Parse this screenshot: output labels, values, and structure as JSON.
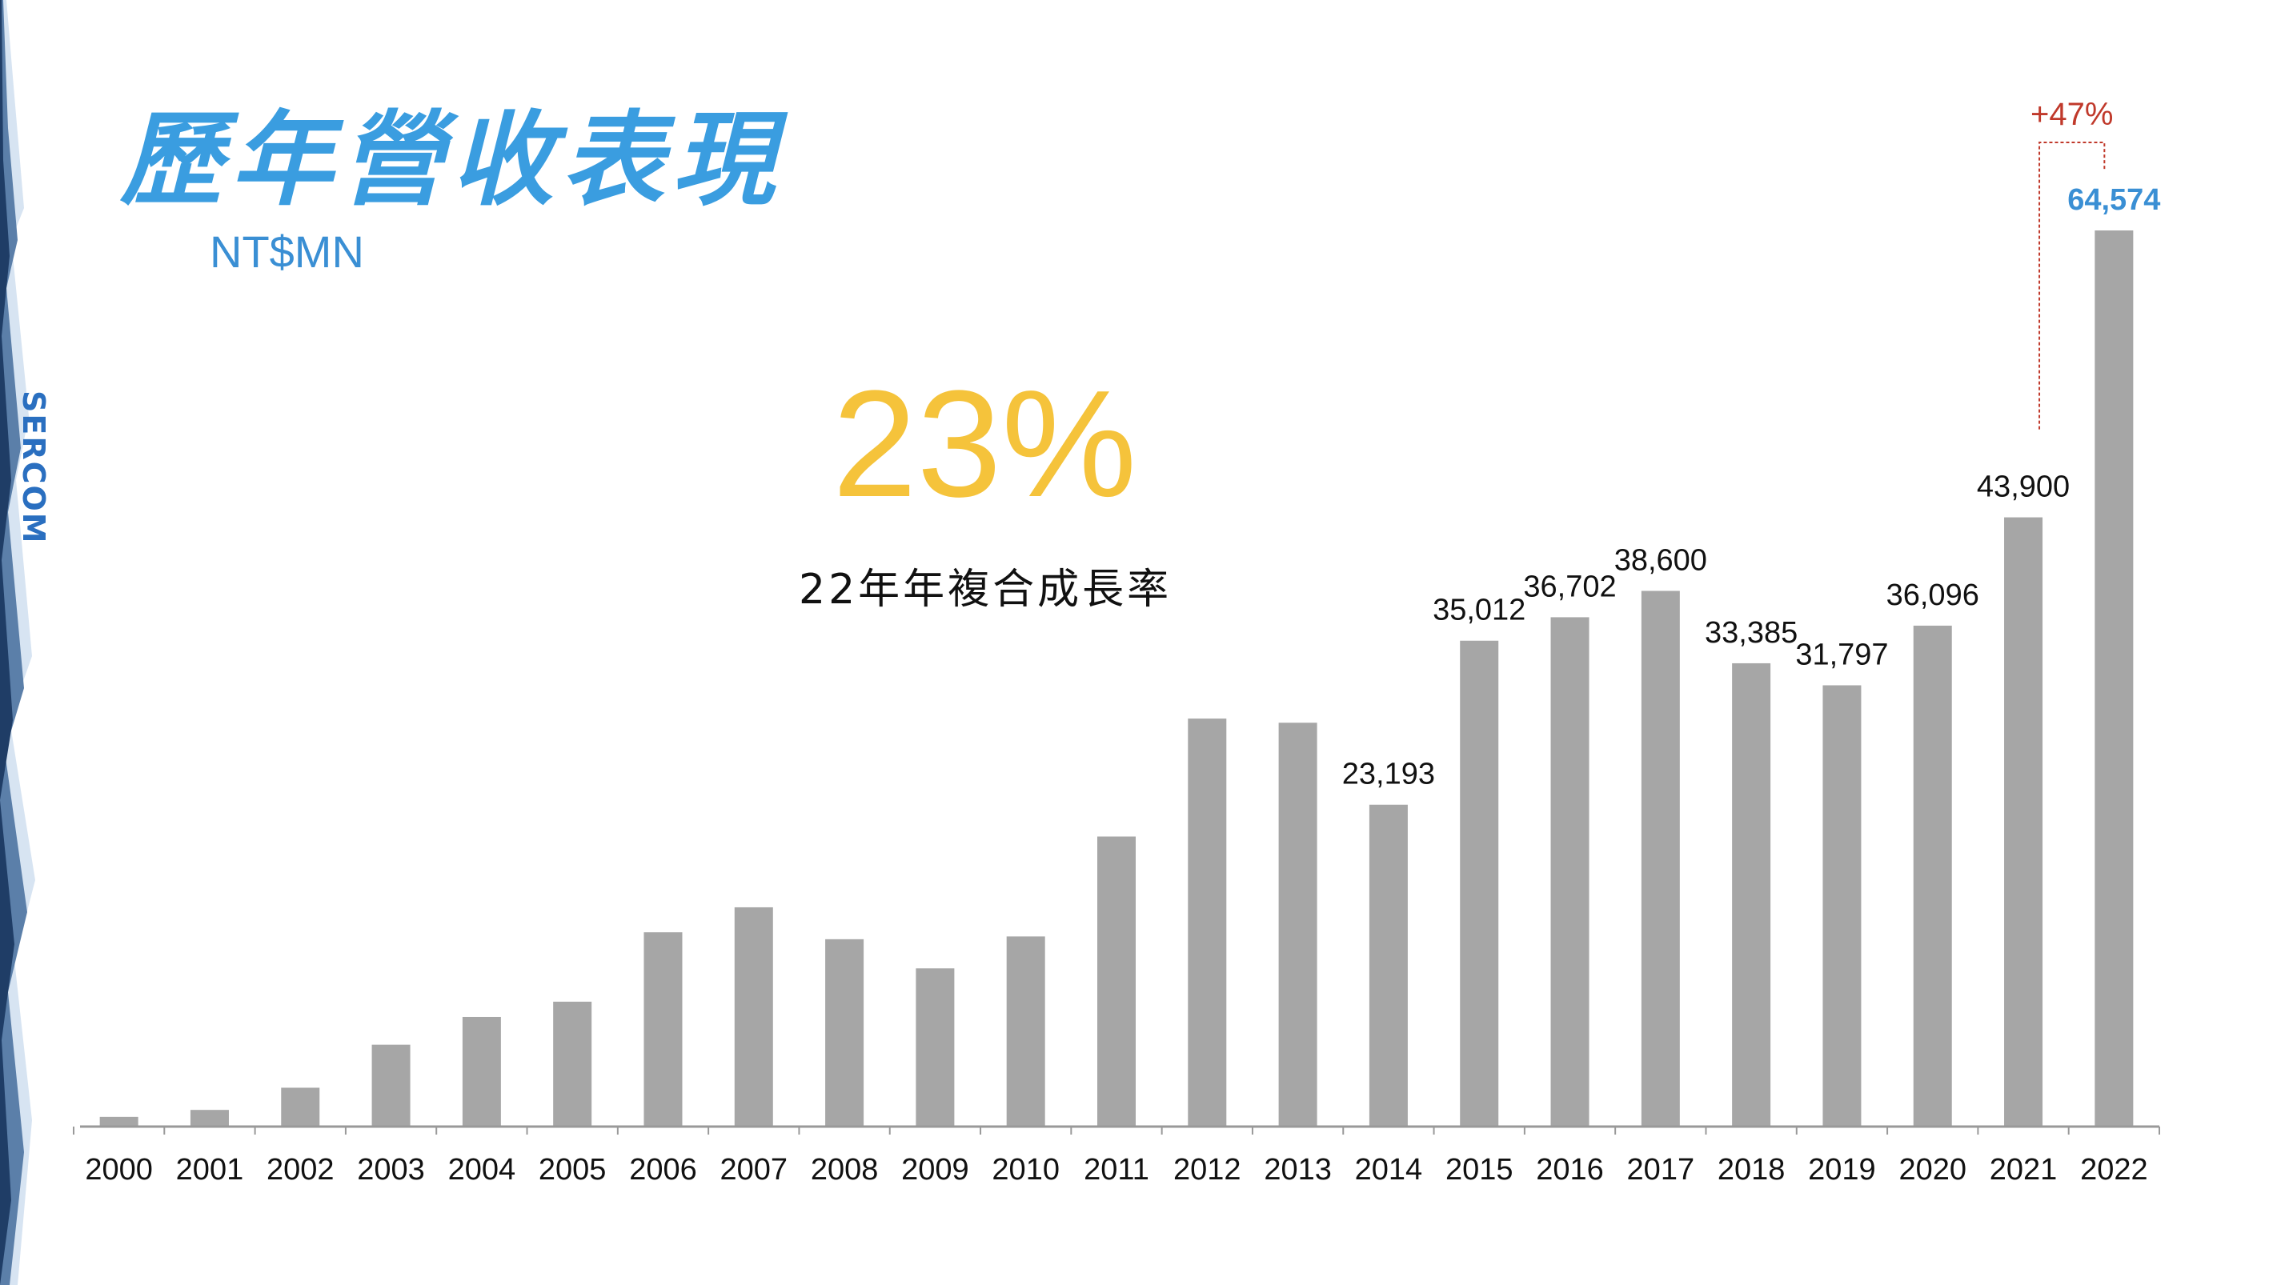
{
  "title": "歷年營收表現",
  "unit": "NT$MN",
  "logo": "SERCOM",
  "cagr": {
    "value": "23%",
    "label": "22年年複合成長率"
  },
  "growth_annotation": "+47%",
  "colors": {
    "title": "#3a9de0",
    "bar": "#a6a6a6",
    "highlight_label": "#3a8fd4",
    "cagr": "#f5c33b",
    "growth": "#c0392b",
    "axis": "#999999"
  },
  "chart_data": {
    "type": "bar",
    "categories": [
      "2000",
      "2001",
      "2002",
      "2003",
      "2004",
      "2005",
      "2006",
      "2007",
      "2008",
      "2009",
      "2010",
      "2011",
      "2012",
      "2013",
      "2014",
      "2015",
      "2016",
      "2017",
      "2018",
      "2019",
      "2020",
      "2021",
      "2022"
    ],
    "values": [
      700,
      1200,
      2800,
      5900,
      7900,
      9000,
      14000,
      15800,
      13500,
      11400,
      13700,
      20900,
      29400,
      29100,
      23193,
      35012,
      36702,
      38600,
      33385,
      31797,
      36096,
      43900,
      64574
    ],
    "data_labels": [
      "",
      "",
      "",
      "",
      "",
      "",
      "",
      "",
      "",
      "",
      "",
      "",
      "",
      "",
      "23,193",
      "35,012",
      "36,702",
      "38,600",
      "33,385",
      "31,797",
      "36,096",
      "43,900",
      "64,574"
    ],
    "highlight_index": 22,
    "ylim": [
      0,
      65000
    ],
    "title": "歷年營收表現",
    "xlabel": "",
    "ylabel": "",
    "grid": false
  }
}
